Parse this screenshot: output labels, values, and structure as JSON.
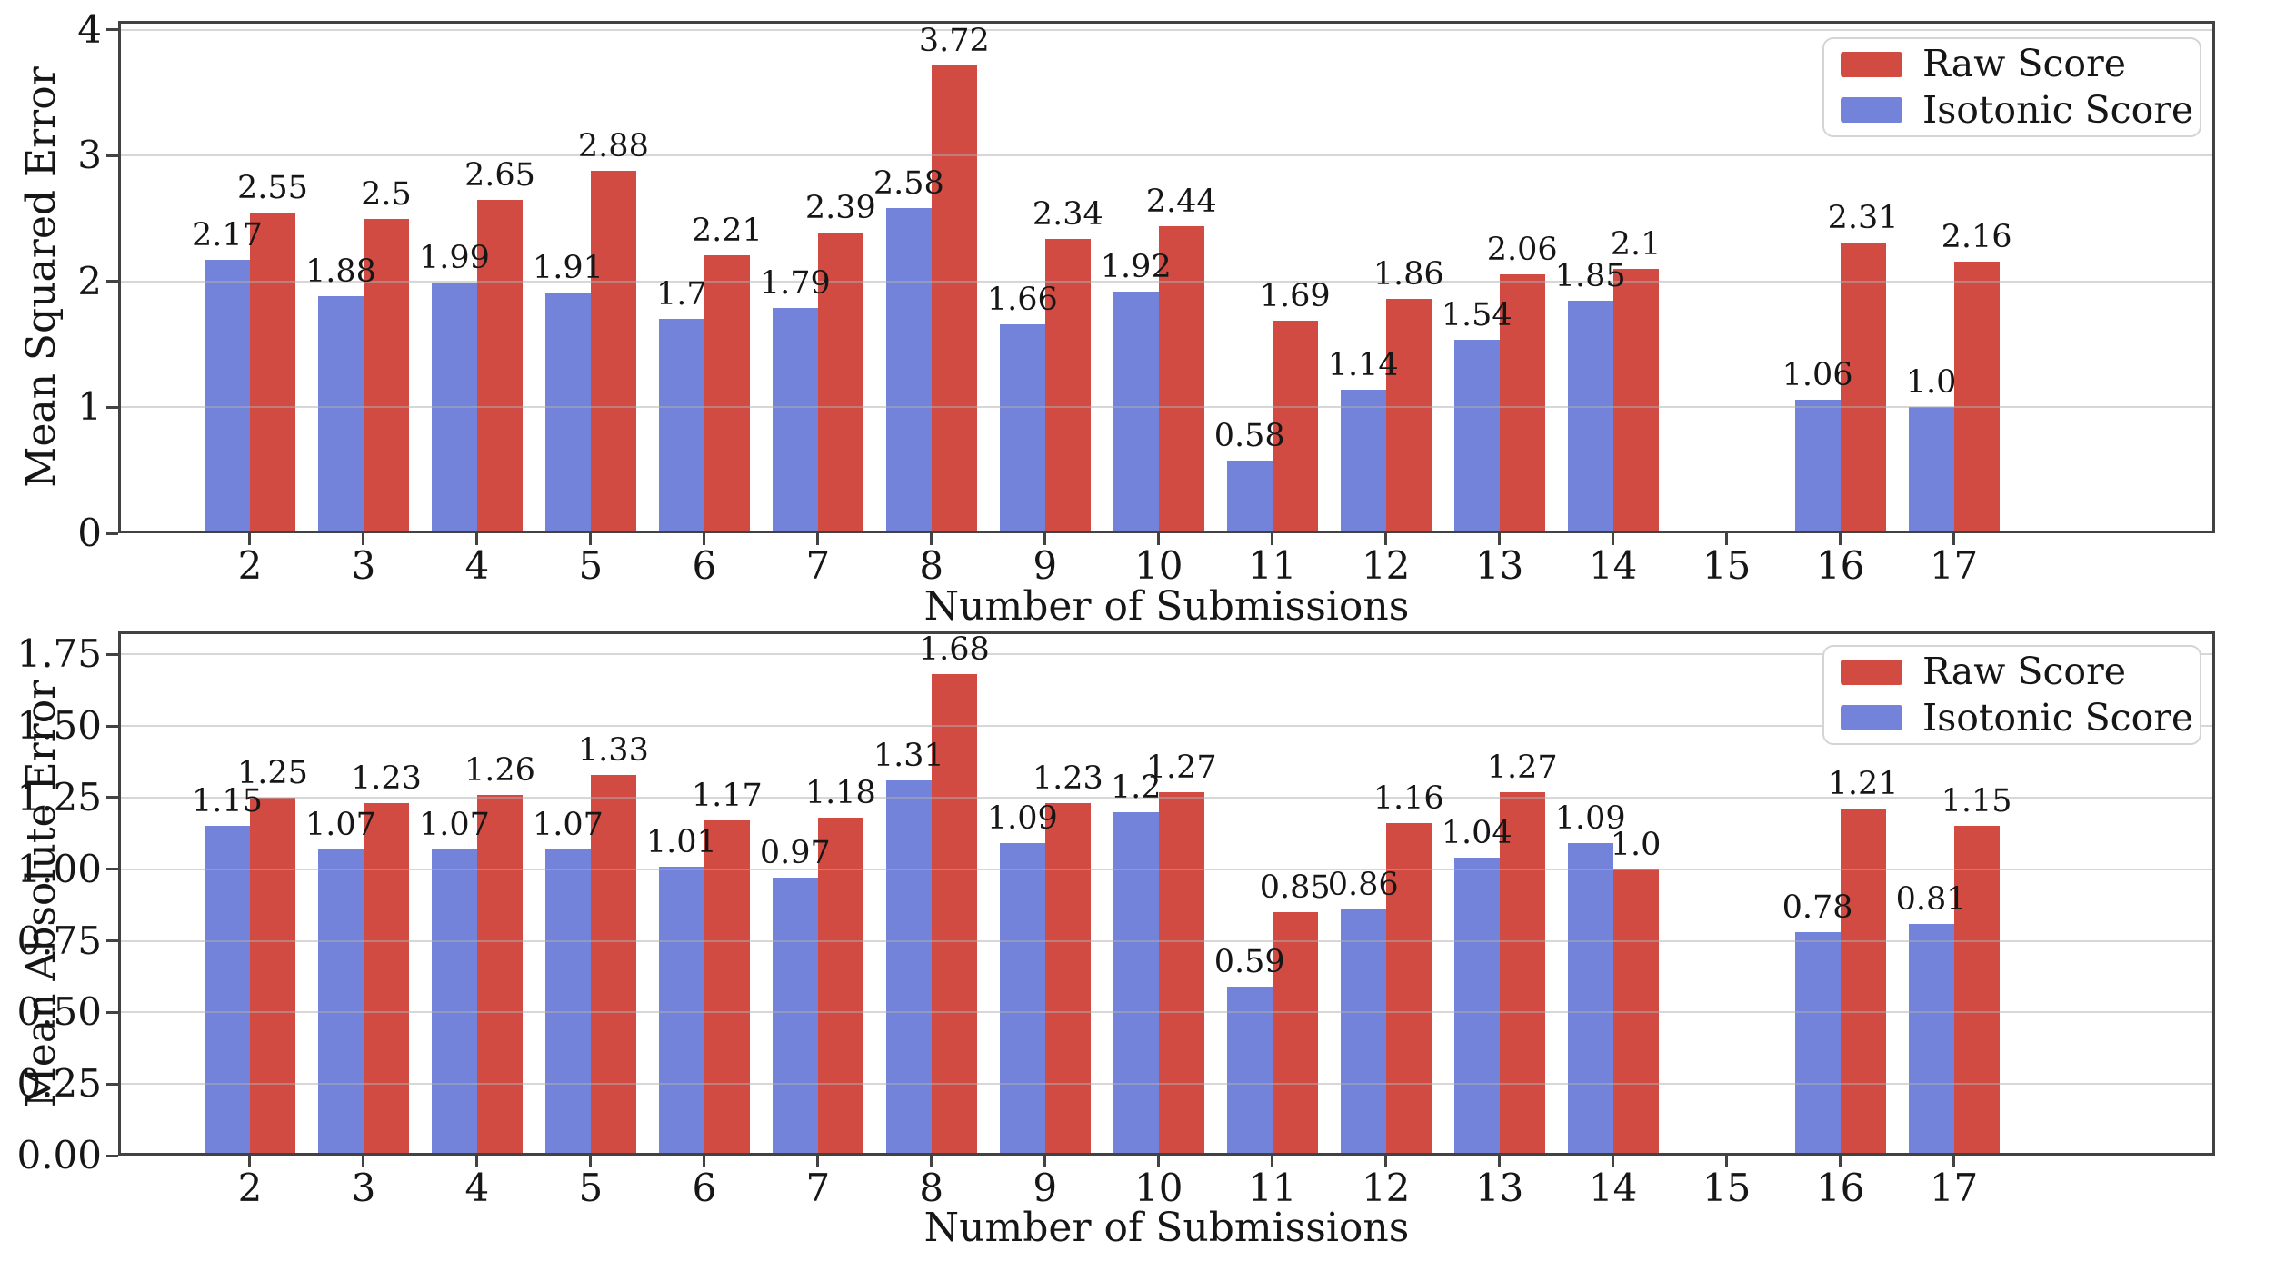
{
  "figure": {
    "background": "#ffffff",
    "text_color": "#161616",
    "spine_color": "#424242",
    "grid_color": "#b0b0b0",
    "raw_score_color": "#d14b42",
    "isotonic_score_color": "#7383d9"
  },
  "chart_data": [
    {
      "id": "mean-squared-error",
      "type": "bar",
      "title": "",
      "xlabel": "Number of Submissions",
      "ylabel": "Mean Squared Error",
      "grid": true,
      "legend_position": "upper right",
      "categories": [
        2,
        3,
        4,
        5,
        6,
        7,
        8,
        9,
        10,
        11,
        12,
        13,
        14,
        15,
        16,
        17
      ],
      "xlim": [
        0.84,
        19.3
      ],
      "ylim": [
        0,
        4.07
      ],
      "yticks": [
        0,
        1,
        2,
        3,
        4
      ],
      "ytick_labels": [
        "0",
        "1",
        "2",
        "3",
        "4"
      ],
      "series": [
        {
          "name": "Raw Score",
          "color": "#d14b42",
          "slot": 1,
          "values": [
            2.55,
            2.5,
            2.65,
            2.88,
            2.21,
            2.39,
            3.72,
            2.34,
            2.44,
            1.69,
            1.86,
            2.06,
            2.1,
            null,
            2.31,
            2.16
          ],
          "labels": [
            "2.55",
            "2.5",
            "2.65",
            "2.88",
            "2.21",
            "2.39",
            "3.72",
            "2.34",
            "2.44",
            "1.69",
            "1.86",
            "2.06",
            "2.1",
            null,
            "2.31",
            "2.16"
          ]
        },
        {
          "name": "Isotonic Score",
          "color": "#7383d9",
          "slot": 0,
          "values": [
            2.17,
            1.88,
            1.99,
            1.91,
            1.7,
            1.79,
            2.58,
            1.66,
            1.92,
            0.58,
            1.14,
            1.54,
            1.85,
            null,
            1.06,
            1.0
          ],
          "labels": [
            "2.17",
            "1.88",
            "1.99",
            "1.91",
            "1.7",
            "1.79",
            "2.58",
            "1.66",
            "1.92",
            "0.58",
            "1.14",
            "1.54",
            "1.85",
            null,
            "1.06",
            "1.0"
          ]
        }
      ]
    },
    {
      "id": "mean-absolute-error",
      "type": "bar",
      "title": "",
      "xlabel": "Number of Submissions",
      "ylabel": "Mean Absolute Error",
      "grid": true,
      "legend_position": "upper right",
      "categories": [
        2,
        3,
        4,
        5,
        6,
        7,
        8,
        9,
        10,
        11,
        12,
        13,
        14,
        15,
        16,
        17
      ],
      "xlim": [
        0.84,
        19.3
      ],
      "ylim": [
        0,
        1.83
      ],
      "yticks": [
        0,
        0.25,
        0.5,
        0.75,
        1.0,
        1.25,
        1.5,
        1.75
      ],
      "ytick_labels": [
        "0.00",
        "0.25",
        "0.50",
        "0.75",
        "1.00",
        "1.25",
        "1.50",
        "1.75"
      ],
      "series": [
        {
          "name": "Raw Score",
          "color": "#d14b42",
          "slot": 1,
          "values": [
            1.25,
            1.23,
            1.26,
            1.33,
            1.17,
            1.18,
            1.68,
            1.23,
            1.27,
            0.85,
            1.16,
            1.27,
            1.0,
            null,
            1.21,
            1.15
          ],
          "labels": [
            "1.25",
            "1.23",
            "1.26",
            "1.33",
            "1.17",
            "1.18",
            "1.68",
            "1.23",
            "1.27",
            "0.85",
            "1.16",
            "1.27",
            "1.0",
            null,
            "1.21",
            "1.15"
          ]
        },
        {
          "name": "Isotonic Score",
          "color": "#7383d9",
          "slot": 0,
          "values": [
            1.15,
            1.07,
            1.07,
            1.07,
            1.01,
            0.97,
            1.31,
            1.09,
            1.2,
            0.59,
            0.86,
            1.04,
            1.09,
            null,
            0.78,
            0.81
          ],
          "labels": [
            "1.15",
            "1.07",
            "1.07",
            "1.07",
            "1.01",
            "0.97",
            "1.31",
            "1.09",
            "1.2",
            "0.59",
            "0.86",
            "1.04",
            "1.09",
            null,
            "0.78",
            "0.81"
          ]
        }
      ]
    }
  ]
}
